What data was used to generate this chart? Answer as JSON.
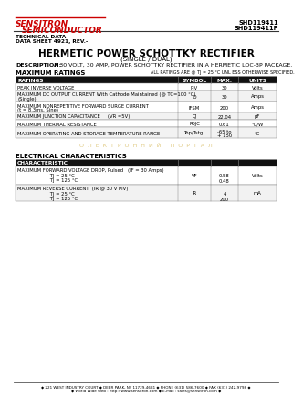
{
  "company": "SENSITRON",
  "company2": "SEMICONDUCTOR",
  "part1": "SHD119411",
  "part2": "SHD119411P",
  "tech_data": "TECHNICAL DATA",
  "data_sheet": "DATA SHEET 4921, REV.-",
  "title": "HERMETIC POWER SCHOTTKY RECTIFIER",
  "subtitle": "(SINGLE / DUAL)",
  "desc_label": "DESCRIPTION:",
  "desc_text": "A 30 VOLT, 30 AMP, POWER SCHOTTKY RECTIFIER IN A HERMETIC LOC-3P PACKAGE.",
  "max_ratings_label": "MAXIMUM RATINGS",
  "all_ratings_note": "ALL RATINGS ARE @ TJ = 25 °C UNL ESS OTHERWISE SPECIFIED.",
  "mr_headers": [
    "RATINGS",
    "SYMBOL",
    "MAX.",
    "UNITS"
  ],
  "mr_rows": [
    [
      "PEAK INVERSE VOLTAGE",
      "PIV",
      "30",
      "Volts"
    ],
    [
      "MAXIMUM DC OUTPUT CURRENT With Cathode Maintained (@ TC=100 °C)\n(Single)",
      "IO",
      "30",
      "Amps"
    ],
    [
      "MAXIMUM NONREPETITIVE FORWARD SURGE CURRENT\n(t = 8.3ms, Sine)",
      "IFSM",
      "200",
      "Amps"
    ],
    [
      "MAXIMUM JUNCTION CAPACITANCE     (VR =5V)",
      "CJ",
      "22.04",
      "pF"
    ],
    [
      "MAXIMUM THERMAL RESISTANCE",
      "RθJC",
      "0.61",
      "°C/W"
    ],
    [
      "MAXIMUM OPERATING AND STORAGE TEMPERATURE RANGE",
      "Top/Tstg",
      "-65 to\n+ 150",
      "°C"
    ]
  ],
  "elec_label": "ELECTRICAL CHARACTERISTICS",
  "ec_rows": [
    [
      "MAXIMUM FORWARD VOLTAGE DROP, Pulsed   (IF = 30 Amps)\n                      TJ = 25 °C\n                      TJ = 125 °C",
      "VF",
      "0.58\n0.48",
      "Volts"
    ],
    [
      "MAXIMUM REVERSE CURRENT  (IR @ 30 V PIV)\n                      TJ = 25 °C\n                      TJ = 125 °C",
      "IR",
      "4\n200",
      "mA"
    ]
  ],
  "footer1": "◆ 221 WEST INDUSTRY COURT ◆ DEER PARK, NY 11729-4681 ◆ PHONE (631) 586-7600 ◆ FAX (631) 242-9798 ◆",
  "footer2": "◆ World Wide Web : http://www.sensitron.com ◆ E-Mail : sales@sensitron.com ◆",
  "red_color": "#cc0000",
  "header_bg": "#111111",
  "header_fg": "#ffffff",
  "border_color": "#888888",
  "watermark_color": "#c8a020",
  "watermark_text": "О  Л  Е  К  Т  Р  О  Н  Н  И  Й     П  О  Р  Т  А  Л"
}
